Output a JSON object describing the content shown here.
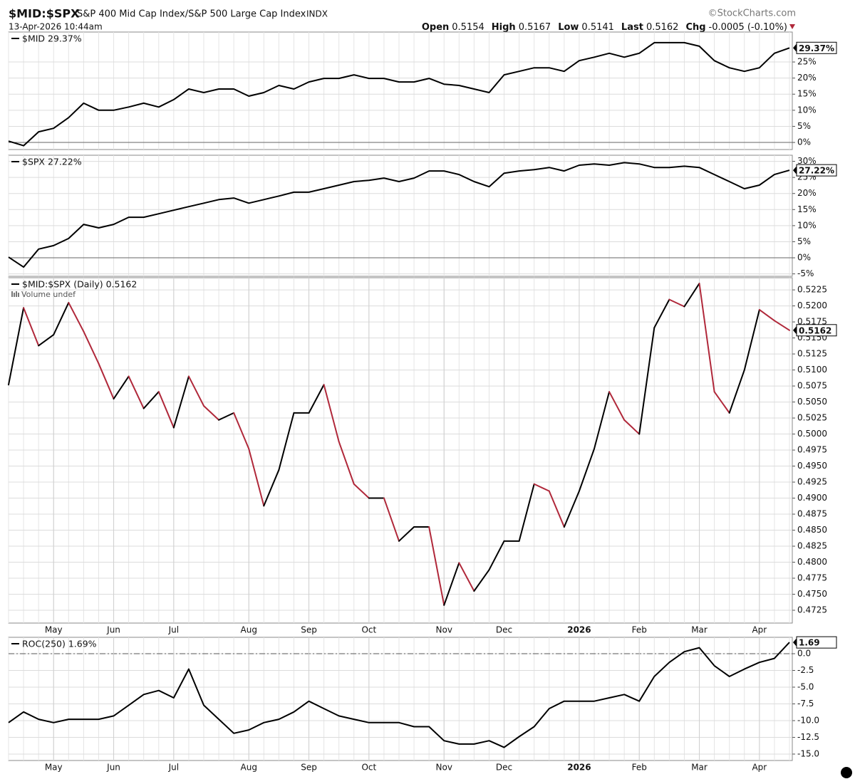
{
  "header": {
    "symbol": "$MID:$SPX",
    "name": "S&P 400 Mid Cap Index/S&P 500 Large Cap Index",
    "exchange": "INDX",
    "copyright": "©StockCharts.com",
    "datetime": "13-Apr-2026 10:44am",
    "quote": [
      {
        "label": "Open",
        "value": "0.5154"
      },
      {
        "label": "High",
        "value": "0.5167"
      },
      {
        "label": "Low",
        "value": "0.5141"
      },
      {
        "label": "Last",
        "value": "0.5162"
      },
      {
        "label": "Chg",
        "value": "-0.0005 (-0.10%)"
      }
    ]
  },
  "chart_data": [
    {
      "type": "line",
      "series": [
        {
          "name": "$MID 29.37%",
          "color": "#000000",
          "values": [
            0.4,
            -1,
            3.3,
            4.4,
            7.7,
            12.2,
            10,
            10,
            11,
            12.2,
            11,
            13.3,
            16.6,
            15.5,
            16.6,
            16.6,
            14.4,
            15.5,
            17.7,
            16.6,
            18.8,
            19.9,
            19.9,
            21,
            19.9,
            19.9,
            18.8,
            18.8,
            19.9,
            18.1,
            17.7,
            16.6,
            15.5,
            21,
            22.1,
            23.2,
            23.2,
            22.1,
            25.4,
            26.5,
            27.7,
            26.5,
            27.7,
            31,
            31,
            31,
            29.9,
            25.4,
            23.2,
            22.1,
            23.2,
            27.7,
            29.37
          ]
        }
      ],
      "last_label": "29.37%",
      "ylim": [
        -2.2,
        34.3
      ],
      "yticks": [
        {
          "value": 0,
          "label": "0%"
        },
        {
          "value": 5,
          "label": "5%"
        },
        {
          "value": 10,
          "label": "10%"
        },
        {
          "value": 15,
          "label": "15%"
        },
        {
          "value": 20,
          "label": "20%"
        },
        {
          "value": 25,
          "label": "25%"
        }
      ],
      "grid": true,
      "hline": 0
    },
    {
      "type": "line",
      "series": [
        {
          "name": "$SPX 27.22%",
          "color": "#000000",
          "values": [
            0.2,
            -2.9,
            2.7,
            3.8,
            6,
            10.4,
            9.3,
            10.4,
            12.6,
            12.6,
            13.7,
            14.8,
            15.9,
            17,
            18.1,
            18.6,
            17,
            18.1,
            19.2,
            20.4,
            20.4,
            21.5,
            22.6,
            23.7,
            24.1,
            24.8,
            23.7,
            24.8,
            27,
            27,
            25.9,
            23.7,
            22.1,
            26.3,
            27,
            27.4,
            28.1,
            27,
            28.8,
            29.2,
            28.8,
            29.6,
            29.2,
            28.1,
            28.1,
            28.5,
            28.1,
            25.9,
            23.7,
            21.5,
            22.6,
            25.9,
            27.22
          ]
        }
      ],
      "last_label": "27.22%",
      "ylim": [
        -5.75,
        31.9
      ],
      "yticks": [
        {
          "value": -5,
          "label": "-5%"
        },
        {
          "value": 0,
          "label": "0%"
        },
        {
          "value": 5,
          "label": "5%"
        },
        {
          "value": 10,
          "label": "10%"
        },
        {
          "value": 15,
          "label": "15%"
        },
        {
          "value": 20,
          "label": "20%"
        },
        {
          "value": 25,
          "label": "25%"
        },
        {
          "value": 30,
          "label": "30%"
        }
      ],
      "grid": true,
      "hline": 0
    },
    {
      "type": "updown",
      "series": [
        {
          "name": "$MID:$SPX (Daily) 0.5162",
          "color": "#000000",
          "down_color": "#b0283a",
          "values": [
            0.5077,
            0.5197,
            0.5138,
            0.5155,
            0.5205,
            0.516,
            0.511,
            0.5055,
            0.509,
            0.504,
            0.5066,
            0.501,
            0.509,
            0.5044,
            0.5022,
            0.5033,
            0.4977,
            0.4888,
            0.4944,
            0.5033,
            0.5033,
            0.5077,
            0.4988,
            0.4922,
            0.49,
            0.49,
            0.4833,
            0.4855,
            0.4855,
            0.4733,
            0.4799,
            0.4755,
            0.4788,
            0.4833,
            0.4833,
            0.4922,
            0.4911,
            0.4855,
            0.4911,
            0.4977,
            0.5066,
            0.5022,
            0.5,
            0.5166,
            0.521,
            0.5199,
            0.5235,
            0.5066,
            0.5033,
            0.51,
            0.5194,
            0.5177,
            0.5162
          ]
        }
      ],
      "volume_note": "Volume undef",
      "last_label": "0.5162",
      "ylim": [
        0.4705,
        0.5244
      ],
      "yticks": [
        0.4725,
        {
          "value": 0.475,
          "label": "0.4750"
        },
        0.4775,
        {
          "value": 0.48,
          "label": "0.4800"
        },
        0.4825,
        {
          "value": 0.485,
          "label": "0.4850"
        },
        0.4875,
        {
          "value": 0.49,
          "label": "0.4900"
        },
        0.4925,
        {
          "value": 0.495,
          "label": "0.4950"
        },
        0.4975,
        {
          "value": 0.5,
          "label": "0.5000"
        },
        0.5025,
        {
          "value": 0.505,
          "label": "0.5050"
        },
        0.5075,
        {
          "value": 0.51,
          "label": "0.5100"
        },
        0.5125,
        {
          "value": 0.515,
          "label": "0.5150"
        },
        0.5175,
        {
          "value": 0.52,
          "label": "0.5200"
        },
        0.5225
      ],
      "grid": true,
      "categories": [
        null,
        null,
        null,
        "May",
        null,
        null,
        null,
        "Jun",
        null,
        null,
        null,
        "Jul",
        null,
        null,
        null,
        null,
        "Aug",
        null,
        null,
        null,
        "Sep",
        null,
        null,
        null,
        "Oct",
        null,
        null,
        null,
        null,
        "Nov",
        null,
        null,
        null,
        "Dec",
        null,
        null,
        null,
        null,
        "2026",
        null,
        null,
        null,
        "Feb",
        null,
        null,
        null,
        "Mar",
        null,
        null,
        null,
        "Apr",
        null,
        null
      ]
    },
    {
      "type": "line",
      "series": [
        {
          "name": "ROC(250) 1.69%",
          "color": "#000000",
          "values": [
            -10.3,
            -8.7,
            -9.8,
            -10.3,
            -9.8,
            -9.8,
            -9.8,
            -9.3,
            -7.7,
            -6.1,
            -5.5,
            -6.6,
            -2.3,
            -7.7,
            -9.8,
            -11.9,
            -11.4,
            -10.3,
            -9.8,
            -8.7,
            -7.1,
            -8.2,
            -9.3,
            -9.8,
            -10.3,
            -10.3,
            -10.3,
            -10.9,
            -10.9,
            -13,
            -13.5,
            -13.5,
            -13,
            -14,
            -12.4,
            -10.9,
            -8.2,
            -7.1,
            -7.1,
            -7.1,
            -6.6,
            -6.1,
            -7.1,
            -3.4,
            -1.3,
            0.3,
            0.9,
            -1.8,
            -3.4,
            -2.3,
            -1.3,
            -0.7,
            1.69
          ]
        }
      ],
      "last_label": "1.69",
      "ylim": [
        -15.96,
        2.45
      ],
      "yticks": [
        {
          "value": 0,
          "label": "0.0"
        },
        -2.5,
        {
          "value": -5,
          "label": "-5.0"
        },
        -7.5,
        {
          "value": -10,
          "label": "-10.0"
        },
        -12.5,
        {
          "value": -15,
          "label": "-15.0"
        }
      ],
      "grid": true,
      "hline": 0,
      "hline_style": "dashdot",
      "categories": [
        null,
        null,
        null,
        "May",
        null,
        null,
        null,
        "Jun",
        null,
        null,
        null,
        "Jul",
        null,
        null,
        null,
        null,
        "Aug",
        null,
        null,
        null,
        "Sep",
        null,
        null,
        null,
        "Oct",
        null,
        null,
        null,
        null,
        "Nov",
        null,
        null,
        null,
        "Dec",
        null,
        null,
        null,
        null,
        "2026",
        null,
        null,
        null,
        "Feb",
        null,
        null,
        null,
        "Mar",
        null,
        null,
        null,
        "Apr",
        null,
        null
      ]
    }
  ]
}
